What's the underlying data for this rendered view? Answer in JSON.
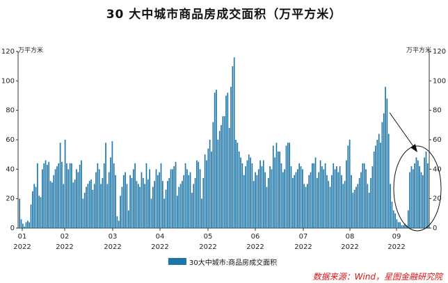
{
  "chart_data": {
    "type": "bar",
    "title": "30 大中城市商品房成交面积（万平方米）",
    "ylabel_left": "万平方米",
    "ylabel_right": "万平方米",
    "ylim": [
      0,
      120
    ],
    "yticks": [
      0,
      20,
      40,
      60,
      80,
      100,
      120
    ],
    "x_tick_labels": [
      {
        "month": "01",
        "year": "2022"
      },
      {
        "month": "02",
        "year": "2022"
      },
      {
        "month": "03",
        "year": "2022"
      },
      {
        "month": "04",
        "year": "2022"
      },
      {
        "month": "05",
        "year": "2022"
      },
      {
        "month": "06",
        "year": "2022"
      },
      {
        "month": "07",
        "year": "2022"
      },
      {
        "month": "08",
        "year": "2022"
      },
      {
        "month": "09",
        "year": "2022"
      }
    ],
    "grid": false,
    "legend_position": "bottom",
    "series": [
      {
        "name": "30大中城市:商品房成交面积",
        "color": "#1f77a8",
        "values": [
          20,
          6,
          3,
          1,
          4,
          5,
          4,
          16,
          25,
          30,
          28,
          44,
          22,
          21,
          40,
          44,
          46,
          43,
          45,
          32,
          31,
          36,
          40,
          42,
          44,
          58,
          45,
          30,
          60,
          44,
          40,
          44,
          44,
          31,
          33,
          40,
          38,
          43,
          46,
          20,
          24,
          28,
          30,
          32,
          33,
          26,
          30,
          38,
          44,
          40,
          30,
          34,
          44,
          58,
          30,
          38,
          48,
          59,
          44,
          36,
          8,
          5,
          22,
          28,
          36,
          38,
          30,
          12,
          36,
          34,
          40,
          44,
          32,
          30,
          28,
          38,
          34,
          30,
          44,
          33,
          40,
          20,
          28,
          32,
          40,
          36,
          38,
          44,
          32,
          20,
          26,
          32,
          34,
          40,
          40,
          42,
          45,
          22,
          28,
          30,
          32,
          36,
          44,
          40,
          36,
          38,
          24,
          30,
          34,
          46,
          45,
          40,
          20,
          34,
          50,
          46,
          54,
          60,
          52,
          72,
          92,
          94,
          60,
          66,
          70,
          76,
          76,
          90,
          92,
          68,
          96,
          110,
          116,
          60,
          58,
          52,
          48,
          44,
          36,
          42,
          46,
          50,
          48,
          44,
          32,
          38,
          36,
          40,
          46,
          42,
          46,
          38,
          28,
          34,
          42,
          40,
          56,
          48,
          58,
          52,
          52,
          44,
          38,
          40,
          56,
          58,
          58,
          42,
          34,
          36,
          38,
          40,
          44,
          42,
          40,
          30,
          28,
          30,
          36,
          38,
          44,
          44,
          48,
          34,
          38,
          46,
          42,
          40,
          44,
          36,
          32,
          28,
          36,
          44,
          40,
          42,
          38,
          42,
          36,
          30,
          32,
          46,
          56,
          60,
          36,
          24,
          26,
          28,
          30,
          34,
          38,
          44,
          44,
          40,
          30,
          24,
          34,
          42,
          52,
          56,
          60,
          64,
          58,
          72,
          78,
          96,
          88,
          64,
          30,
          18,
          12,
          10,
          6,
          4,
          4,
          2,
          2,
          3,
          2,
          12,
          38,
          42,
          40,
          44,
          48,
          46,
          42,
          38,
          36,
          48,
          52,
          44
        ]
      }
    ],
    "annotation": "arrow pointing to circled recent bars"
  },
  "legend": {
    "label": "30大中城市:商品房成交面积"
  },
  "source": "数据来源：Wind，星图金融研究院"
}
